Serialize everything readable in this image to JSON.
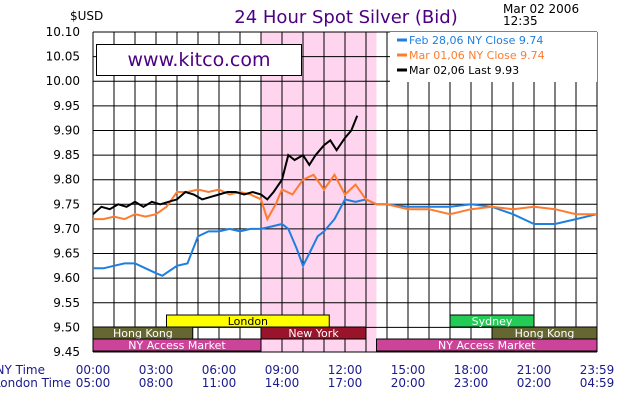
{
  "chart_data": {
    "type": "line",
    "title": "24 Hour Spot Silver (Bid)",
    "ylabel": "$USD",
    "date_line1": "Mar 02 2006",
    "date_line2": "12:35",
    "website": "www.kitco.com",
    "ylim": [
      9.45,
      10.1
    ],
    "yticks": [
      "10.10",
      "10.05",
      "10.00",
      "9.95",
      "9.90",
      "9.85",
      "9.80",
      "9.75",
      "9.70",
      "9.65",
      "9.60",
      "9.55",
      "9.50",
      "9.45"
    ],
    "x_row_labels": {
      "ny": "NY Time",
      "london": "London Time"
    },
    "xticks_ny": [
      "00:00",
      "03:00",
      "06:00",
      "09:00",
      "12:00",
      "15:00",
      "18:00",
      "21:00",
      "23:59"
    ],
    "xticks_london": [
      "05:00",
      "08:00",
      "11:00",
      "14:00",
      "17:00",
      "20:00",
      "23:00",
      "02:00",
      "04:59"
    ],
    "grid": true,
    "highlight_window_ny_hours": [
      8.0,
      13.5
    ],
    "series": [
      {
        "name": "Feb 28,06",
        "legend": "Feb 28,06  NY Close  9.74",
        "color": "#1e7fe0",
        "x": [
          0,
          0.5,
          1,
          1.5,
          2,
          2.5,
          3,
          3.3,
          4,
          4.5,
          5,
          5.5,
          6,
          6.5,
          7,
          7.5,
          8,
          8.5,
          9,
          9.3,
          9.7,
          10,
          10.3,
          10.7,
          11,
          11.5,
          12,
          12.5,
          13,
          13.5,
          14,
          15,
          16,
          17,
          18,
          19,
          20,
          21,
          22,
          23,
          23.99
        ],
        "y": [
          9.62,
          9.62,
          9.625,
          9.63,
          9.63,
          9.62,
          9.61,
          9.605,
          9.625,
          9.63,
          9.685,
          9.695,
          9.695,
          9.7,
          9.695,
          9.7,
          9.7,
          9.705,
          9.71,
          9.7,
          9.66,
          9.625,
          9.65,
          9.685,
          9.695,
          9.72,
          9.76,
          9.755,
          9.76,
          9.75,
          9.75,
          9.745,
          9.745,
          9.745,
          9.75,
          9.745,
          9.73,
          9.71,
          9.71,
          9.72,
          9.73
        ]
      },
      {
        "name": "Mar 01,06",
        "legend": "Mar 01,06  NY Close  9.74",
        "color": "#ff7b2e",
        "x": [
          0,
          0.5,
          1,
          1.5,
          2,
          2.5,
          3,
          3.5,
          4,
          4.5,
          5,
          5.5,
          6,
          6.5,
          7,
          7.5,
          8,
          8.3,
          8.7,
          9,
          9.5,
          10,
          10.5,
          11,
          11.5,
          12,
          12.5,
          13,
          13.5,
          14,
          15,
          16,
          17,
          18,
          19,
          20,
          21,
          22,
          23,
          23.99
        ],
        "y": [
          9.72,
          9.72,
          9.725,
          9.72,
          9.73,
          9.725,
          9.73,
          9.745,
          9.775,
          9.775,
          9.78,
          9.775,
          9.78,
          9.77,
          9.775,
          9.77,
          9.76,
          9.72,
          9.75,
          9.78,
          9.77,
          9.8,
          9.81,
          9.78,
          9.81,
          9.77,
          9.79,
          9.76,
          9.75,
          9.75,
          9.74,
          9.74,
          9.73,
          9.74,
          9.745,
          9.74,
          9.745,
          9.74,
          9.73,
          9.73
        ]
      },
      {
        "name": "Mar 02,06",
        "legend": "Mar 02,06  Last  9.93",
        "color": "#000000",
        "x": [
          0,
          0.4,
          0.8,
          1.2,
          1.6,
          2,
          2.4,
          2.8,
          3.2,
          3.6,
          4,
          4.4,
          4.8,
          5.2,
          5.6,
          6,
          6.4,
          6.8,
          7.2,
          7.6,
          8,
          8.3,
          8.6,
          9,
          9.3,
          9.6,
          10,
          10.3,
          10.6,
          11,
          11.3,
          11.6,
          12,
          12.3,
          12.58
        ],
        "y": [
          9.73,
          9.745,
          9.74,
          9.75,
          9.745,
          9.755,
          9.745,
          9.755,
          9.75,
          9.755,
          9.76,
          9.775,
          9.77,
          9.76,
          9.765,
          9.77,
          9.775,
          9.775,
          9.77,
          9.775,
          9.77,
          9.76,
          9.775,
          9.8,
          9.85,
          9.84,
          9.85,
          9.83,
          9.85,
          9.87,
          9.88,
          9.86,
          9.885,
          9.9,
          9.93
        ]
      }
    ],
    "markets": [
      {
        "name": "London",
        "row": 0,
        "start": 3.5,
        "end": 11.25,
        "color": "#ffff00",
        "text_color": "#000000"
      },
      {
        "name": "Sydney",
        "row": 0,
        "start": 17.0,
        "end": 21.0,
        "color": "#22cc55",
        "text_color": "#ffffff"
      },
      {
        "name": "Hong Kong",
        "row": 1,
        "start": 0.0,
        "end": 4.75,
        "color": "#666633",
        "text_color": "#ffffff"
      },
      {
        "name": "New York",
        "row": 1,
        "start": 8.0,
        "end": 13.0,
        "color": "#99132a",
        "text_color": "#ffffff"
      },
      {
        "name": "Hong Kong",
        "row": 1,
        "start": 19.0,
        "end": 24.0,
        "color": "#666633",
        "text_color": "#ffffff"
      },
      {
        "name": "NY Access Market",
        "row": 2,
        "start": 0.0,
        "end": 8.0,
        "color": "#cc4499",
        "text_color": "#ffffff"
      },
      {
        "name": "NY Access Market",
        "row": 2,
        "start": 13.5,
        "end": 24.0,
        "color": "#cc4499",
        "text_color": "#ffffff"
      }
    ],
    "colors": {
      "title": "#4b0082",
      "highlight": "#ffd4ee",
      "grid": "#000000"
    }
  }
}
